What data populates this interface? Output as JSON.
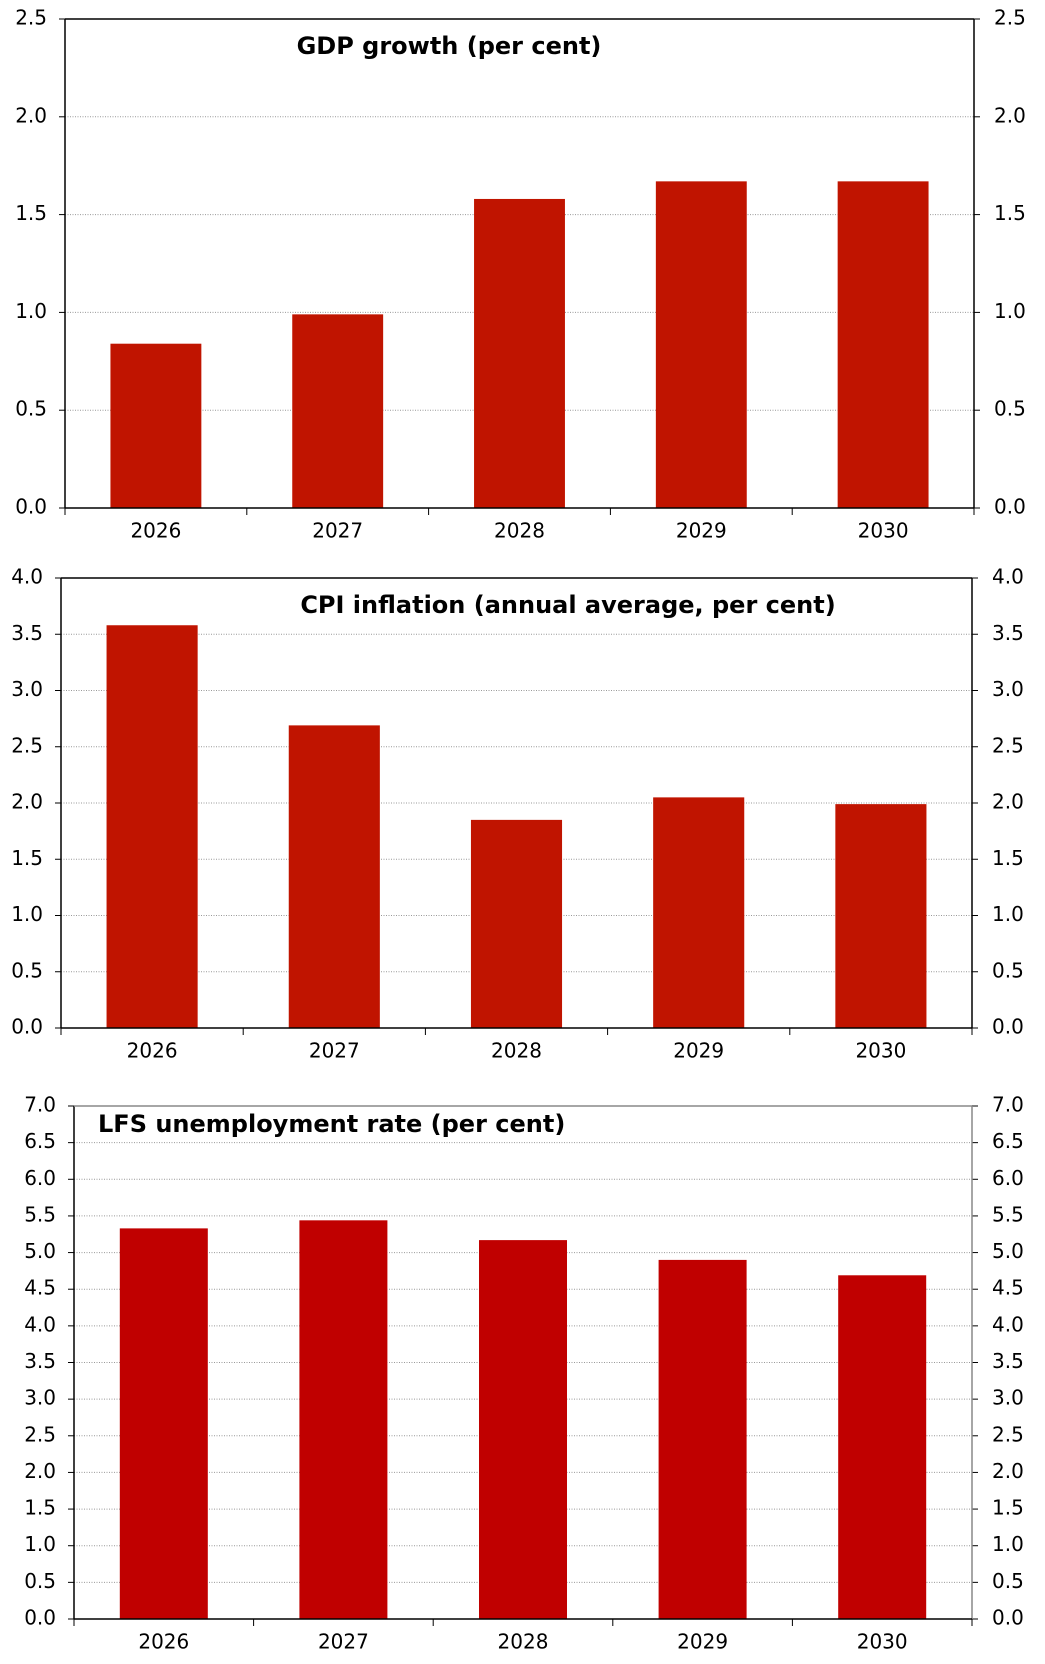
{
  "chart_data": [
    {
      "type": "bar",
      "title": "GDP growth (per cent)",
      "categories": [
        "2026",
        "2027",
        "2028",
        "2029",
        "2030"
      ],
      "values": [
        0.84,
        0.99,
        1.58,
        1.67,
        1.67
      ],
      "color": "#c01400",
      "ylim": [
        0,
        2.5
      ],
      "yticks": [
        {
          "value": 0,
          "label": "0.0"
        },
        0.5,
        {
          "value": 1,
          "label": "1.0"
        },
        1.5,
        {
          "value": 2,
          "label": "2.0"
        },
        2.5
      ],
      "grid": true
    },
    {
      "type": "bar",
      "title": "CPI inflation (annual average, per cent)",
      "categories": [
        "2026",
        "2027",
        "2028",
        "2029",
        "2030"
      ],
      "values": [
        3.58,
        2.69,
        1.85,
        2.05,
        1.99
      ],
      "color": "#c01400",
      "ylim": [
        0,
        4
      ],
      "yticks": [
        {
          "value": 0,
          "label": "0.0"
        },
        0.5,
        {
          "value": 1,
          "label": "1.0"
        },
        1.5,
        {
          "value": 2,
          "label": "2.0"
        },
        2.5,
        {
          "value": 3,
          "label": "3.0"
        },
        3.5,
        {
          "value": 4,
          "label": "4.0"
        }
      ],
      "grid": true
    },
    {
      "type": "bar",
      "title": "LFS unemployment rate (per cent)",
      "categories": [
        "2026",
        "2027",
        "2028",
        "2029",
        "2030"
      ],
      "values": [
        5.33,
        5.44,
        5.17,
        4.9,
        4.69
      ],
      "color": "#c00000",
      "ylim": [
        0,
        7
      ],
      "yticks": [
        {
          "value": 0,
          "label": "0.0"
        },
        0.5,
        {
          "value": 1,
          "label": "1.0"
        },
        1.5,
        {
          "value": 2,
          "label": "2.0"
        },
        2.5,
        {
          "value": 3,
          "label": "3.0"
        },
        3.5,
        {
          "value": 4,
          "label": "4.0"
        },
        4.5,
        {
          "value": 5,
          "label": "5.0"
        },
        5.5,
        {
          "value": 6,
          "label": "6.0"
        },
        6.5,
        {
          "value": 7,
          "label": "7.0"
        }
      ],
      "grid": true
    }
  ]
}
